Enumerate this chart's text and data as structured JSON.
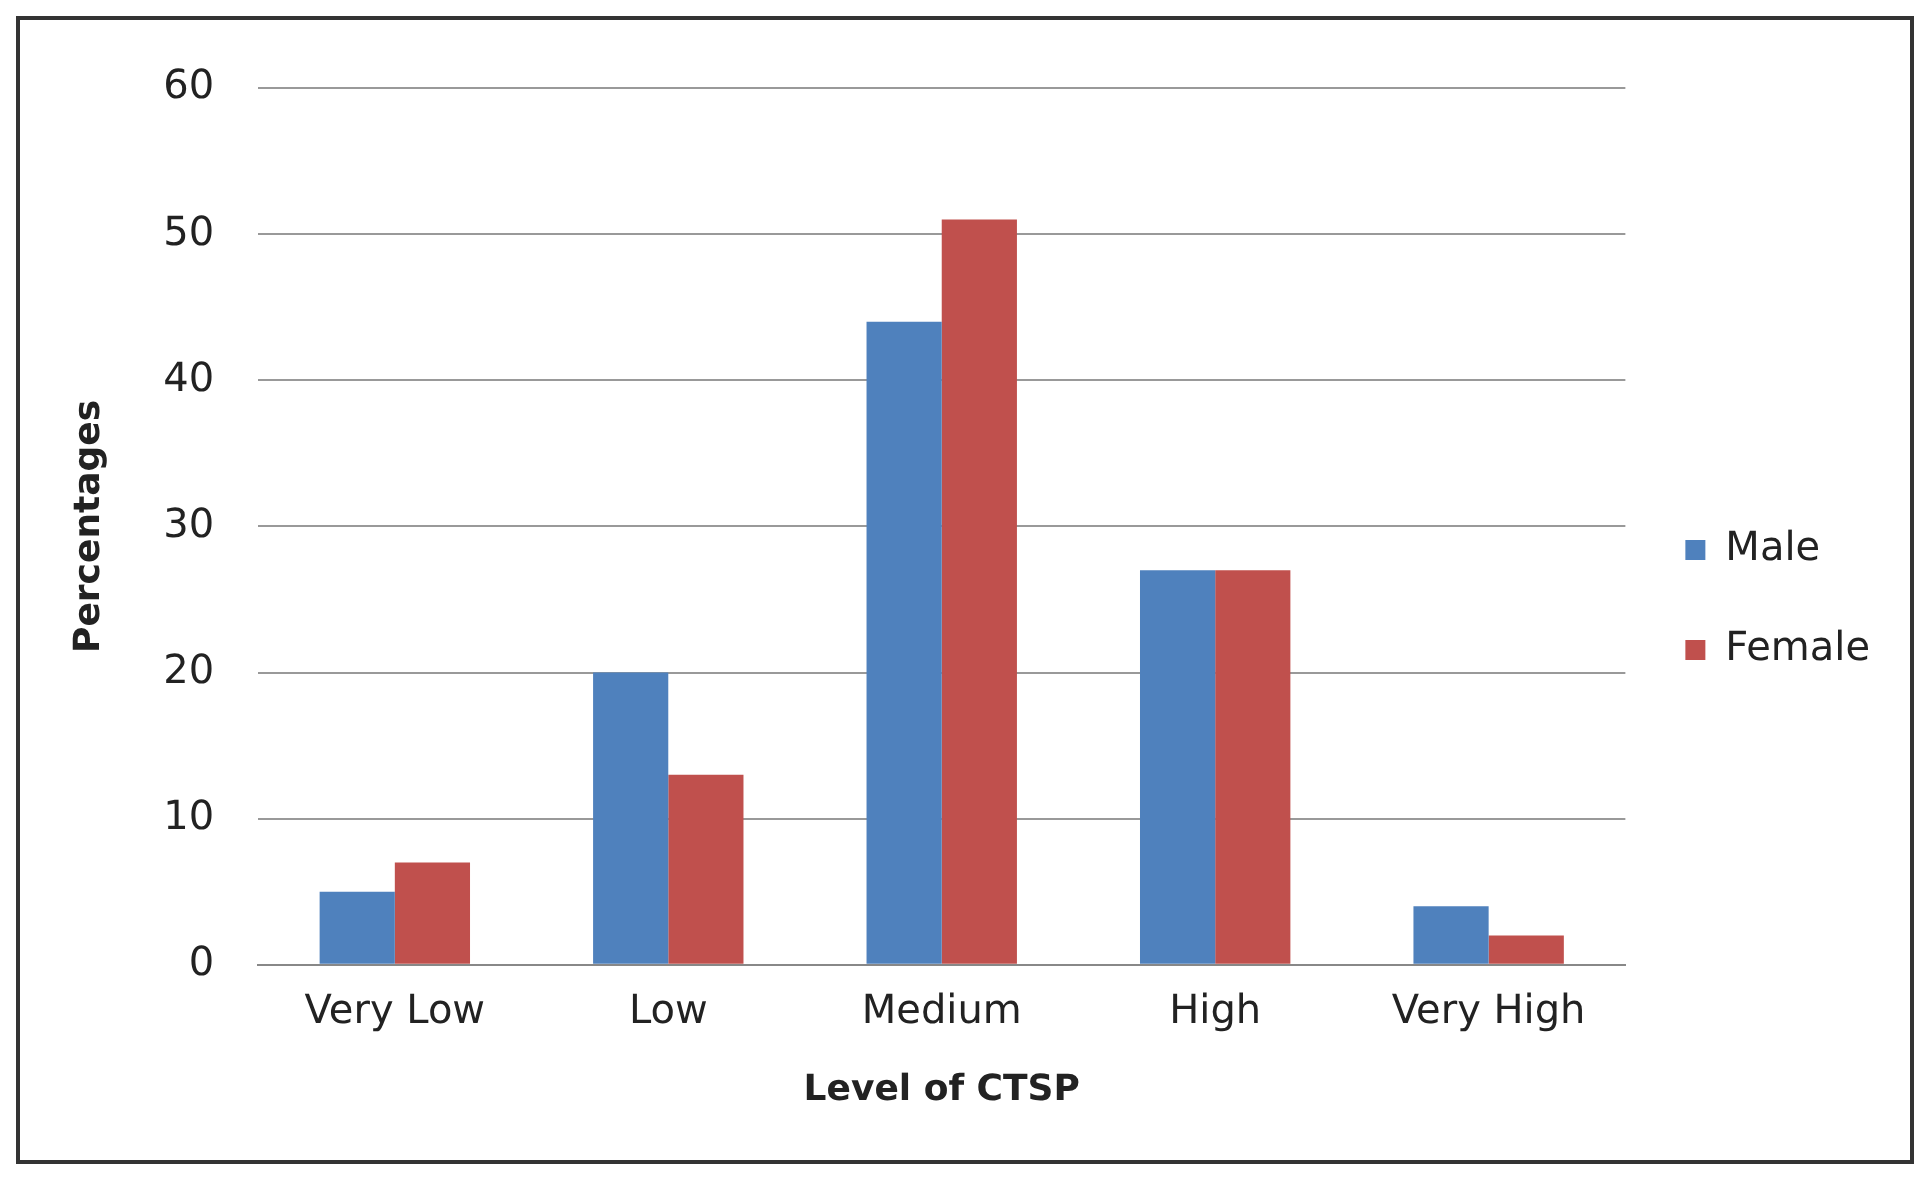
{
  "chart_data": {
    "type": "bar",
    "xlabel": "Level of CTSP",
    "ylabel": "Percentages",
    "categories": [
      "Very Low",
      "Low",
      "Medium",
      "High",
      "Very High"
    ],
    "series": [
      {
        "name": "Male",
        "color": "#4f81bd",
        "values": [
          5,
          20,
          44,
          27,
          4
        ]
      },
      {
        "name": "Female",
        "color": "#c0504d",
        "values": [
          7,
          13,
          51,
          27,
          2
        ]
      }
    ],
    "ylim": [
      0,
      60
    ],
    "yticks": [
      0,
      10,
      20,
      30,
      40,
      50,
      60
    ],
    "grid": "y",
    "legend": "right"
  }
}
